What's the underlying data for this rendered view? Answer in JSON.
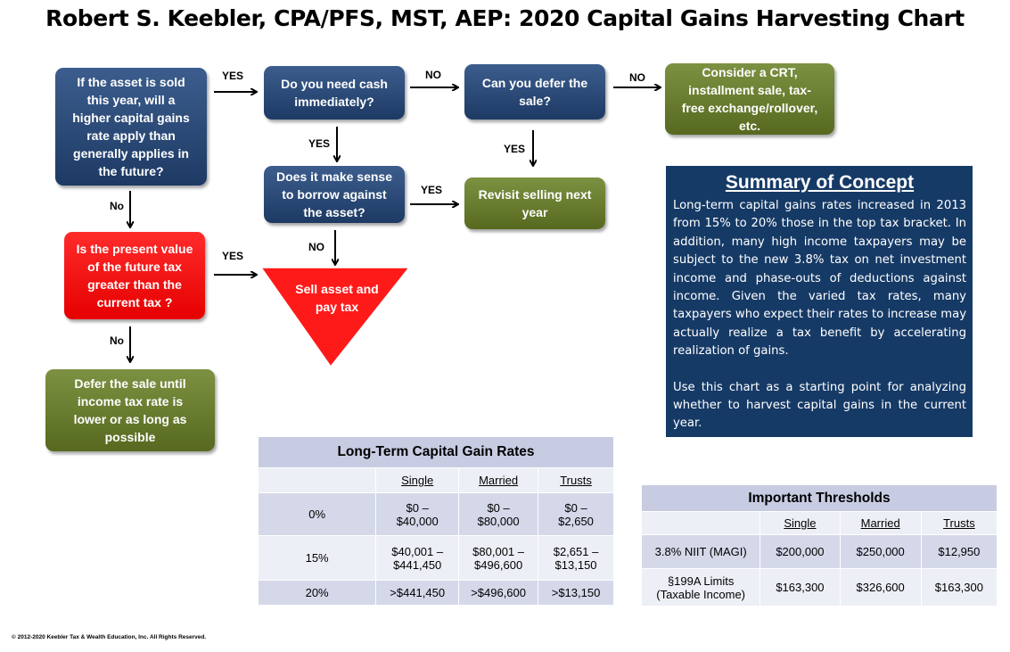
{
  "title": "Robert S. Keebler, CPA/PFS, MST, AEP: 2020 Capital Gains Harvesting Chart",
  "flow": {
    "q_higher_rate": "If the asset is sold this year, will a higher capital gains rate apply than generally applies in the future?",
    "q_need_cash": "Do you need cash immediately?",
    "q_can_defer": "Can you defer the sale?",
    "consider_crt": "Consider a CRT, installment sale, tax-free exchange/rollover, etc.",
    "q_borrow": "Does it make sense to borrow against the asset?",
    "revisit": "Revisit selling next year",
    "q_present_value": "Is the present value of the future tax greater than the current tax ?",
    "sell_asset": "Sell asset and pay tax",
    "defer_sale": "Defer the sale until income tax rate is lower or as long as possible",
    "labels": {
      "yes1": "YES",
      "no1": "NO",
      "no2": "NO",
      "yes_cash": "YES",
      "yes_defer": "YES",
      "yes_borrow": "YES",
      "no_borrow": "NO",
      "no_left": "No",
      "yes_pv": "YES",
      "no_pv": "No"
    }
  },
  "summary": {
    "heading": "Summary of Concept",
    "p1": "Long-term capital gains rates increased in 2013 from 15% to 20% those in the top tax bracket. In addition, many high income taxpayers may be subject to the new 3.8% tax on net investment income and phase-outs of deductions against income. Given the varied tax rates, many taxpayers who expect their rates to increase may actually realize a tax benefit by accelerating realization of gains.",
    "p2": "Use this chart as a starting point for analyzing whether to harvest capital gains in the current year."
  },
  "ltcg_table": {
    "caption": "Long-Term Capital Gain Rates",
    "headers": [
      "",
      "Single",
      "Married",
      "Trusts"
    ],
    "rows": [
      [
        "0%",
        "$0 – $40,000",
        "$0 – $80,000",
        "$0 – $2,650"
      ],
      [
        "15%",
        "$40,001 – $441,450",
        "$80,001 – $496,600",
        "$2,651 – $13,150"
      ],
      [
        "20%",
        ">$441,450",
        ">$496,600",
        ">$13,150"
      ]
    ]
  },
  "thresholds_table": {
    "caption": "Important Thresholds",
    "headers": [
      "",
      "Single",
      "Married",
      "Trusts"
    ],
    "rows": [
      [
        "3.8% NIIT (MAGI)",
        "$200,000",
        "$250,000",
        "$12,950"
      ],
      [
        "§199A Limits (Taxable Income)",
        "$163,300",
        "$326,600",
        "$163,300"
      ]
    ]
  },
  "footer": "© 2012-2020 Keebler Tax & Wealth Education, Inc. All Rights Reserved.",
  "colors": {
    "navy": "#1d3a64",
    "olive": "#56691f",
    "red": "#ff0000",
    "summary_bg": "#163a66",
    "table_header": "#c7cce2"
  }
}
